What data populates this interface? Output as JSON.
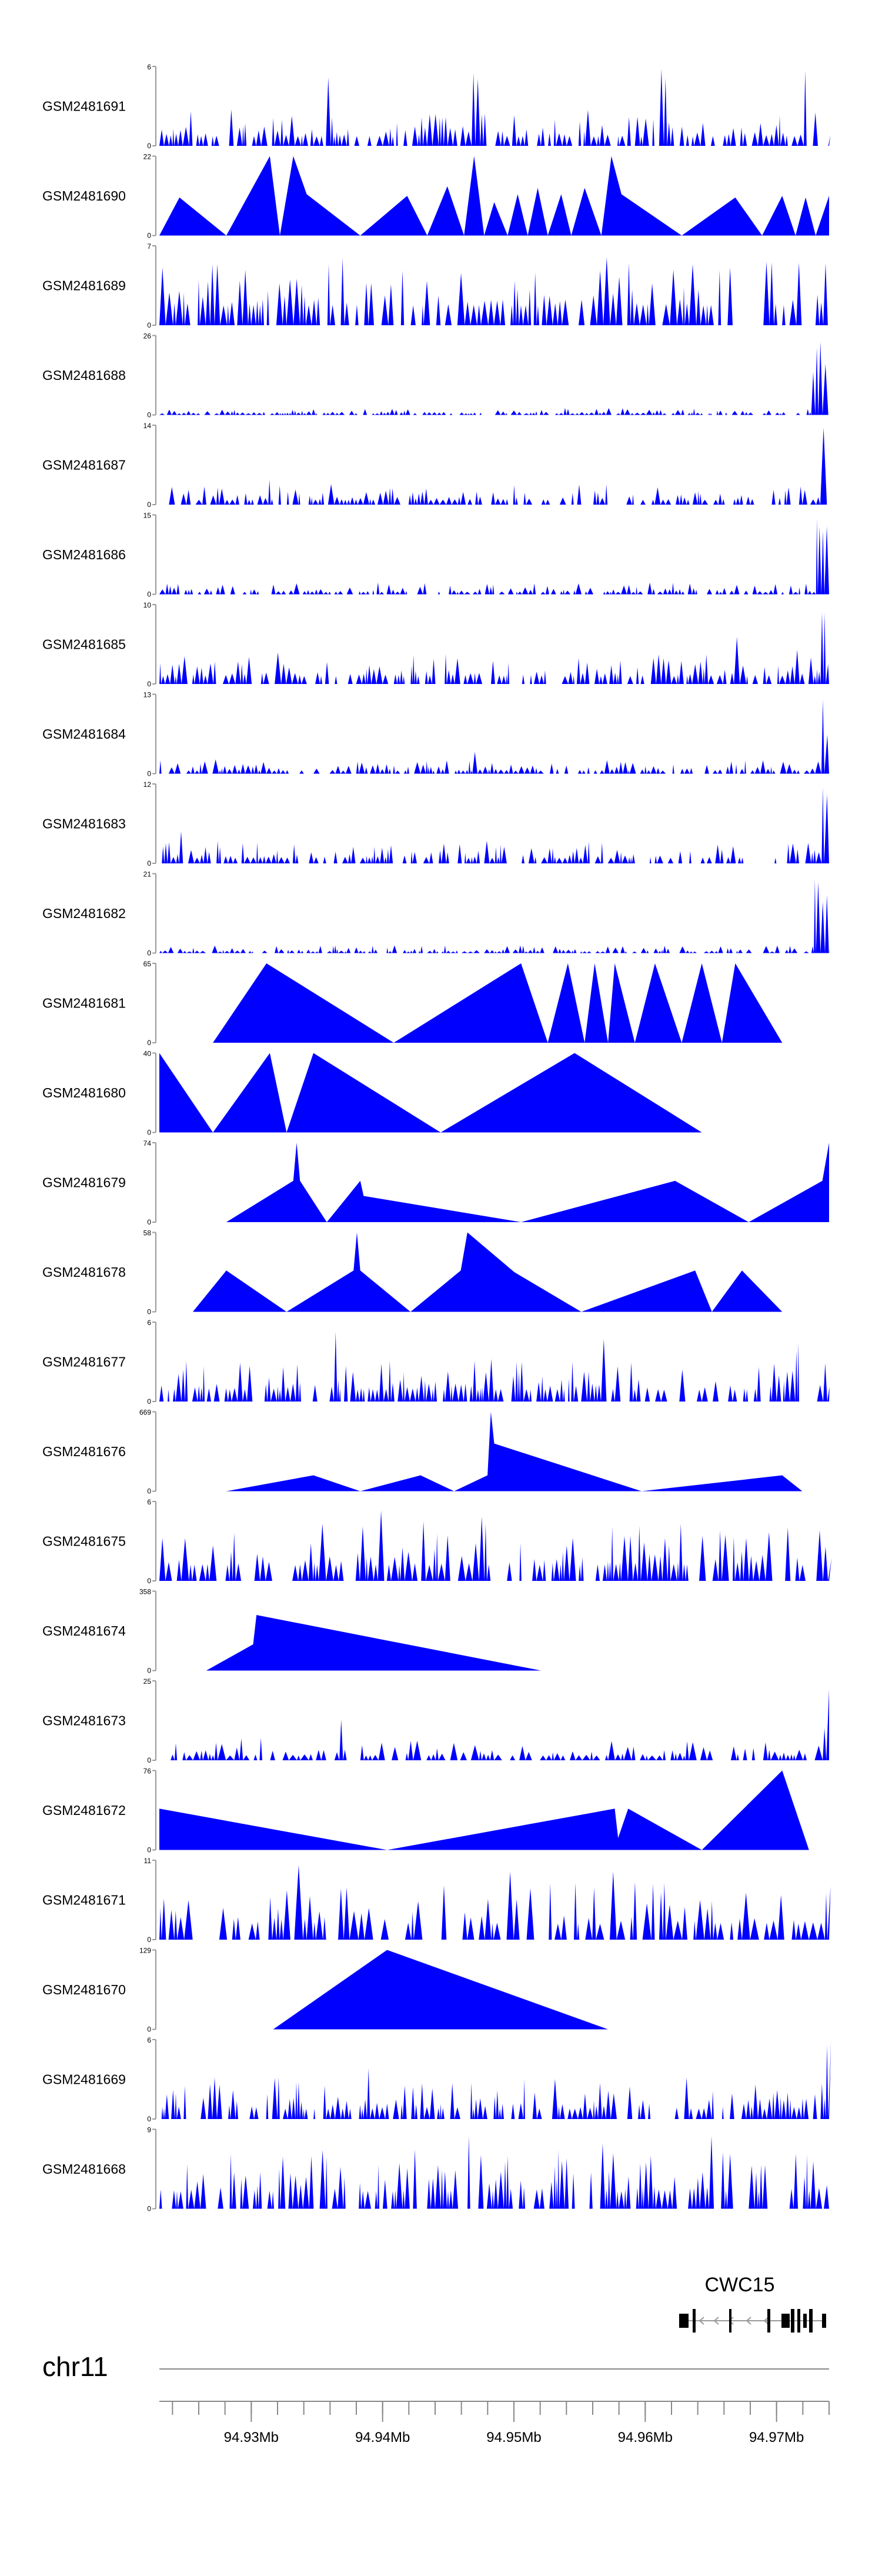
{
  "chart_data": {
    "type": "area",
    "color": "#0000ff",
    "tracks": [
      {
        "name": "GSM2481691",
        "ymax": "6",
        "ymin": "0",
        "style": "spiky",
        "density": 165,
        "base": 0.12,
        "spread": 0.35,
        "peaks": [
          [
            0.25,
            1.0
          ],
          [
            0.47,
            0.95
          ],
          [
            0.75,
            1.0
          ],
          [
            0.96,
            0.97
          ]
        ]
      },
      {
        "name": "GSM2481690",
        "ymax": "22",
        "ymin": "0",
        "style": "tri",
        "points": [
          [
            0.0,
            0.0
          ],
          [
            0.03,
            0.48
          ],
          [
            0.1,
            0.0
          ],
          [
            0.165,
            1.0
          ],
          [
            0.18,
            0.0
          ],
          [
            0.2,
            1.0
          ],
          [
            0.22,
            0.52
          ],
          [
            0.3,
            0.0
          ],
          [
            0.37,
            0.5
          ],
          [
            0.4,
            0.0
          ],
          [
            0.43,
            0.62
          ],
          [
            0.455,
            0.0
          ],
          [
            0.47,
            1.0
          ],
          [
            0.485,
            0.0
          ],
          [
            0.5,
            0.42
          ],
          [
            0.52,
            0.0
          ],
          [
            0.535,
            0.52
          ],
          [
            0.55,
            0.0
          ],
          [
            0.565,
            0.6
          ],
          [
            0.58,
            0.0
          ],
          [
            0.6,
            0.52
          ],
          [
            0.615,
            0.0
          ],
          [
            0.635,
            0.6
          ],
          [
            0.66,
            0.0
          ],
          [
            0.675,
            1.0
          ],
          [
            0.69,
            0.52
          ],
          [
            0.78,
            0.0
          ],
          [
            0.86,
            0.48
          ],
          [
            0.9,
            0.0
          ],
          [
            0.93,
            0.5
          ],
          [
            0.95,
            0.0
          ],
          [
            0.965,
            0.48
          ],
          [
            0.98,
            0.0
          ],
          [
            1.0,
            0.5
          ]
        ]
      },
      {
        "name": "GSM2481689",
        "ymax": "7",
        "ymin": "0",
        "style": "spiky",
        "density": 140,
        "base": 0.25,
        "spread": 0.55,
        "peaks": [
          [
            0.27,
            0.92
          ],
          [
            0.66,
            0.95
          ],
          [
            0.99,
            0.85
          ]
        ]
      },
      {
        "name": "GSM2481688",
        "ymax": "26",
        "ymin": "0",
        "style": "spiky",
        "density": 170,
        "base": 0.02,
        "spread": 0.07,
        "peaks": [
          [
            0.98,
            1.0
          ],
          [
            0.99,
            0.75
          ],
          [
            0.975,
            0.6
          ]
        ]
      },
      {
        "name": "GSM2481687",
        "ymax": "14",
        "ymin": "0",
        "style": "spiky",
        "density": 160,
        "base": 0.06,
        "spread": 0.2,
        "peaks": [
          [
            0.16,
            0.32
          ],
          [
            0.985,
            1.0
          ],
          [
            0.99,
            0.3
          ]
        ]
      },
      {
        "name": "GSM2481686",
        "ymax": "15",
        "ymin": "0",
        "style": "spiky",
        "density": 170,
        "base": 0.03,
        "spread": 0.12,
        "peaks": [
          [
            0.98,
            1.0
          ],
          [
            0.99,
            0.9
          ],
          [
            0.995,
            0.6
          ]
        ]
      },
      {
        "name": "GSM2481685",
        "ymax": "10",
        "ymin": "0",
        "style": "spiky",
        "density": 165,
        "base": 0.1,
        "spread": 0.3,
        "peaks": [
          [
            0.86,
            0.6
          ],
          [
            0.93,
            0.65
          ],
          [
            0.99,
            1.0
          ],
          [
            0.95,
            0.5
          ]
        ]
      },
      {
        "name": "GSM2481684",
        "ymax": "13",
        "ymin": "0",
        "style": "spiky",
        "density": 165,
        "base": 0.04,
        "spread": 0.14,
        "peaks": [
          [
            0.47,
            0.3
          ],
          [
            0.985,
            1.0
          ],
          [
            0.99,
            0.55
          ]
        ]
      },
      {
        "name": "GSM2481683",
        "ymax": "12",
        "ymin": "0",
        "style": "spiky",
        "density": 165,
        "base": 0.07,
        "spread": 0.22,
        "peaks": [
          [
            0.03,
            0.45
          ],
          [
            0.985,
            1.0
          ],
          [
            0.99,
            0.9
          ],
          [
            0.995,
            0.75
          ]
        ]
      },
      {
        "name": "GSM2481682",
        "ymax": "21",
        "ymin": "0",
        "style": "spiky",
        "density": 165,
        "base": 0.02,
        "spread": 0.08,
        "peaks": [
          [
            0.98,
            1.0
          ],
          [
            0.99,
            0.75
          ]
        ]
      },
      {
        "name": "GSM2481681",
        "ymax": "65",
        "ymin": "0",
        "style": "tri",
        "points": [
          [
            0.08,
            0.0
          ],
          [
            0.16,
            1.0
          ],
          [
            0.35,
            0.0
          ],
          [
            0.54,
            1.0
          ],
          [
            0.58,
            0.0
          ],
          [
            0.61,
            1.0
          ],
          [
            0.635,
            0.0
          ],
          [
            0.65,
            1.0
          ],
          [
            0.67,
            0.0
          ],
          [
            0.68,
            1.0
          ],
          [
            0.71,
            0.0
          ],
          [
            0.74,
            1.0
          ],
          [
            0.78,
            0.0
          ],
          [
            0.81,
            1.0
          ],
          [
            0.84,
            0.0
          ],
          [
            0.86,
            1.0
          ],
          [
            0.93,
            0.0
          ]
        ]
      },
      {
        "name": "GSM2481680",
        "ymax": "40",
        "ymin": "0",
        "style": "tri",
        "points": [
          [
            0.0,
            0.0
          ],
          [
            0.0,
            1.0
          ],
          [
            0.08,
            0.0
          ],
          [
            0.165,
            1.0
          ],
          [
            0.19,
            0.0
          ],
          [
            0.23,
            1.0
          ],
          [
            0.42,
            0.0
          ],
          [
            0.62,
            1.0
          ],
          [
            0.81,
            0.0
          ]
        ]
      },
      {
        "name": "GSM2481679",
        "ymax": "74",
        "ymin": "0",
        "style": "tri",
        "points": [
          [
            0.1,
            0.0
          ],
          [
            0.2,
            0.52
          ],
          [
            0.205,
            1.0
          ],
          [
            0.21,
            0.52
          ],
          [
            0.25,
            0.0
          ],
          [
            0.3,
            0.52
          ],
          [
            0.305,
            0.33
          ],
          [
            0.54,
            0.0
          ],
          [
            0.77,
            0.52
          ],
          [
            0.88,
            0.0
          ],
          [
            0.99,
            0.52
          ],
          [
            1.0,
            1.0
          ],
          [
            1.0,
            0.0
          ]
        ]
      },
      {
        "name": "GSM2481678",
        "ymax": "58",
        "ymin": "0",
        "style": "tri",
        "points": [
          [
            0.05,
            0.0
          ],
          [
            0.1,
            0.52
          ],
          [
            0.19,
            0.0
          ],
          [
            0.29,
            0.52
          ],
          [
            0.295,
            1.0
          ],
          [
            0.3,
            0.52
          ],
          [
            0.375,
            0.0
          ],
          [
            0.45,
            0.52
          ],
          [
            0.46,
            1.0
          ],
          [
            0.53,
            0.5
          ],
          [
            0.63,
            0.0
          ],
          [
            0.8,
            0.52
          ],
          [
            0.825,
            0.0
          ],
          [
            0.87,
            0.52
          ],
          [
            0.93,
            0.0
          ]
        ]
      },
      {
        "name": "GSM2481677",
        "ymax": "6",
        "ymin": "0",
        "style": "spiky",
        "density": 175,
        "base": 0.15,
        "spread": 0.4,
        "peaks": [
          [
            0.26,
            1.0
          ],
          [
            0.66,
            0.88
          ],
          [
            0.95,
            0.75
          ]
        ]
      },
      {
        "name": "GSM2481676",
        "ymax": "669",
        "ymin": "0",
        "style": "tri",
        "points": [
          [
            0.1,
            0.0
          ],
          [
            0.23,
            0.2
          ],
          [
            0.3,
            0.0
          ],
          [
            0.39,
            0.2
          ],
          [
            0.44,
            0.0
          ],
          [
            0.49,
            0.2
          ],
          [
            0.495,
            1.0
          ],
          [
            0.5,
            0.6
          ],
          [
            0.72,
            0.0
          ],
          [
            0.93,
            0.2
          ],
          [
            0.96,
            0.0
          ]
        ]
      },
      {
        "name": "GSM2481675",
        "ymax": "6",
        "ymin": "0",
        "style": "spiky",
        "density": 140,
        "base": 0.2,
        "spread": 0.55,
        "peaks": [
          [
            0.13,
            1.0
          ],
          [
            0.33,
            0.9
          ],
          [
            0.48,
            0.9
          ]
        ]
      },
      {
        "name": "GSM2481674",
        "ymax": "358",
        "ymin": "0",
        "style": "tri",
        "points": [
          [
            0.07,
            0.0
          ],
          [
            0.14,
            0.33
          ],
          [
            0.145,
            0.7
          ],
          [
            0.57,
            0.0
          ]
        ]
      },
      {
        "name": "GSM2481673",
        "ymax": "25",
        "ymin": "0",
        "style": "spiky",
        "density": 125,
        "base": 0.06,
        "spread": 0.22,
        "peaks": [
          [
            0.27,
            0.55
          ],
          [
            0.995,
            1.0
          ],
          [
            0.99,
            0.45
          ]
        ]
      },
      {
        "name": "GSM2481672",
        "ymax": "76",
        "ymin": "0",
        "style": "tri",
        "points": [
          [
            0.0,
            0.0
          ],
          [
            0.0,
            0.52
          ],
          [
            0.34,
            0.0
          ],
          [
            0.68,
            0.52
          ],
          [
            0.685,
            0.15
          ],
          [
            0.7,
            0.52
          ],
          [
            0.81,
            0.0
          ],
          [
            0.93,
            1.0
          ],
          [
            0.97,
            0.0
          ]
        ]
      },
      {
        "name": "GSM2481671",
        "ymax": "11",
        "ymin": "0",
        "style": "spiky",
        "density": 120,
        "base": 0.2,
        "spread": 0.55,
        "peaks": [
          [
            0.2,
            1.0
          ],
          [
            0.52,
            1.0
          ],
          [
            0.67,
            0.95
          ]
        ]
      },
      {
        "name": "GSM2481670",
        "ymax": "129",
        "ymin": "0",
        "style": "tri",
        "points": [
          [
            0.17,
            0.0
          ],
          [
            0.34,
            1.0
          ],
          [
            0.67,
            0.0
          ]
        ]
      },
      {
        "name": "GSM2481669",
        "ymax": "6",
        "ymin": "0",
        "style": "spiky",
        "density": 175,
        "base": 0.13,
        "spread": 0.4,
        "peaks": [
          [
            0.31,
            0.75
          ],
          [
            0.997,
            1.0
          ]
        ]
      },
      {
        "name": "GSM2481668",
        "ymax": "9",
        "ymin": "0",
        "style": "spiky",
        "density": 165,
        "base": 0.22,
        "spread": 0.55,
        "peaks": [
          [
            0.46,
            1.0
          ],
          [
            0.82,
            0.95
          ],
          [
            0.66,
            0.85
          ]
        ]
      }
    ],
    "chromosome": "chr11",
    "gene": {
      "name": "CWC15",
      "strand": "-"
    },
    "axis": {
      "start": 94923000,
      "end": 94974000,
      "tick_labels": [
        "94.93Mb",
        "94.94Mb",
        "94.95Mb",
        "94.96Mb",
        "94.97Mb"
      ],
      "tick_values": [
        94930000,
        94940000,
        94950000,
        94960000,
        94970000
      ],
      "minor_step": 2000
    }
  }
}
